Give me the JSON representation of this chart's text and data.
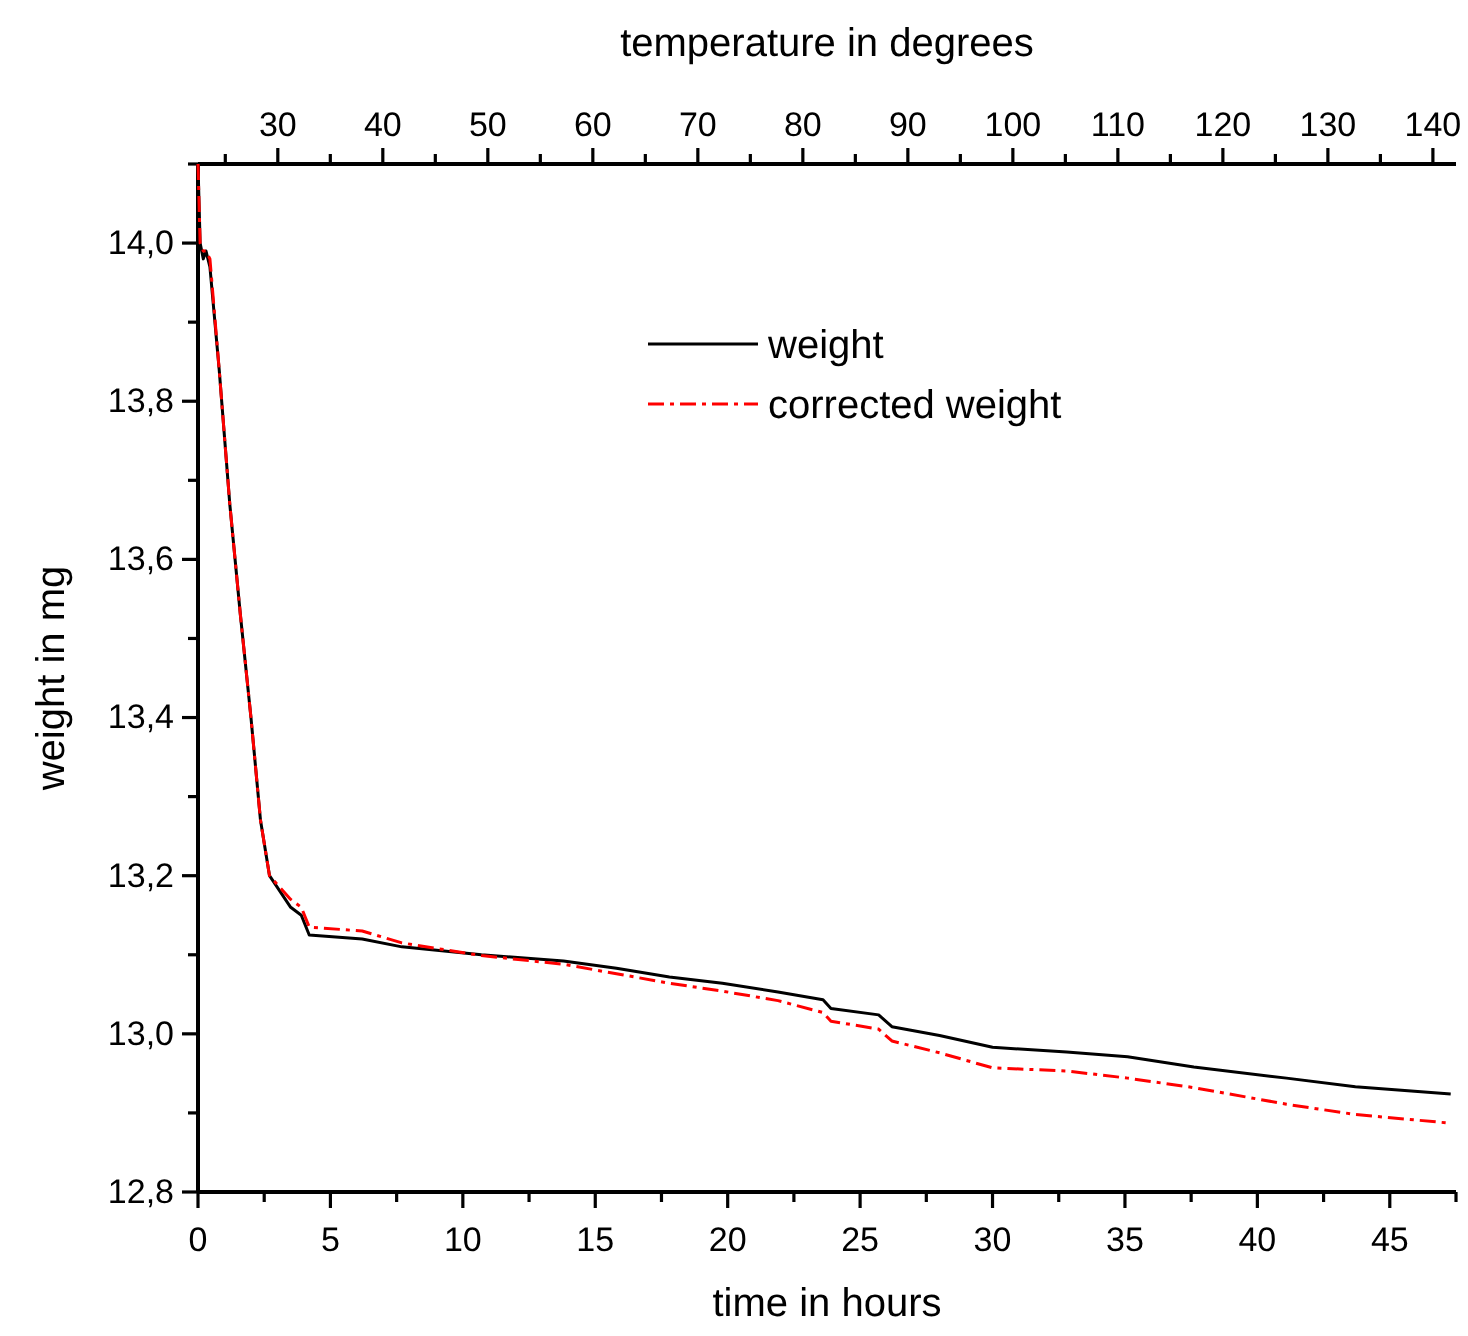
{
  "chart_data": {
    "type": "line",
    "xlabel": "time in hours",
    "ylabel": "weight in mg",
    "x2label": "temperature in degrees",
    "xlim": [
      0,
      47.5
    ],
    "ylim": [
      12.8,
      14.1
    ],
    "x2lim": [
      22.4,
      142.2
    ],
    "xticks": [
      0,
      {
        "value": 2.5,
        "label": null
      },
      5,
      {
        "value": 7.5,
        "label": null
      },
      10,
      {
        "value": 12.5,
        "label": null
      },
      15,
      {
        "value": 17.5,
        "label": null
      },
      20,
      {
        "value": 22.5,
        "label": null
      },
      25,
      {
        "value": 27.5,
        "label": null
      },
      30,
      {
        "value": 32.5,
        "label": null
      },
      35,
      {
        "value": 37.5,
        "label": null
      },
      40,
      {
        "value": 42.5,
        "label": null
      },
      45,
      {
        "value": 47.5,
        "label": null
      }
    ],
    "x2ticks": [
      {
        "value": 25,
        "label": null
      },
      30,
      {
        "value": 35,
        "label": null
      },
      40,
      {
        "value": 45,
        "label": null
      },
      50,
      {
        "value": 55,
        "label": null
      },
      60,
      {
        "value": 65,
        "label": null
      },
      70,
      {
        "value": 75,
        "label": null
      },
      80,
      {
        "value": 85,
        "label": null
      },
      90,
      {
        "value": 95,
        "label": null
      },
      100,
      {
        "value": 105,
        "label": null
      },
      110,
      {
        "value": 115,
        "label": null
      },
      120,
      {
        "value": 125,
        "label": null
      },
      130,
      {
        "value": 135,
        "label": null
      },
      140
    ],
    "yticks": [
      {
        "value": 12.8,
        "label": "12,8"
      },
      {
        "value": 12.9,
        "label": null
      },
      {
        "value": 13.0,
        "label": "13,0"
      },
      {
        "value": 13.1,
        "label": null
      },
      {
        "value": 13.2,
        "label": "13,2"
      },
      {
        "value": 13.3,
        "label": null
      },
      {
        "value": 13.4,
        "label": "13,4"
      },
      {
        "value": 13.5,
        "label": null
      },
      {
        "value": 13.6,
        "label": "13,6"
      },
      {
        "value": 13.7,
        "label": null
      },
      {
        "value": 13.8,
        "label": "13,8"
      },
      {
        "value": 13.9,
        "label": null
      },
      {
        "value": 14.0,
        "label": "14,0"
      },
      {
        "value": 14.1,
        "label": null
      }
    ],
    "legend": "top right",
    "grid": false,
    "marker": "none",
    "series": [
      {
        "name": "weight",
        "color": "#000000",
        "line_style": "solid",
        "x": [
          0,
          0.08,
          0.2,
          0.3,
          0.45,
          0.8,
          1.2,
          1.6,
          2.0,
          2.36,
          2.7,
          3.5,
          3.9,
          4.2,
          6.2,
          7.7,
          10.7,
          13.8,
          15.8,
          17.8,
          19.8,
          21.9,
          23.6,
          23.9,
          25.7,
          26.2,
          28.0,
          30.0,
          32.8,
          35.1,
          37.6,
          41.1,
          43.7,
          47.3
        ],
        "values": [
          14.1,
          14.0,
          13.98,
          13.99,
          13.97,
          13.84,
          13.67,
          13.53,
          13.4,
          13.27,
          13.2,
          13.16,
          13.15,
          13.125,
          13.12,
          13.11,
          13.1,
          13.092,
          13.083,
          13.072,
          13.064,
          13.053,
          13.043,
          13.032,
          13.024,
          13.009,
          12.998,
          12.983,
          12.977,
          12.971,
          12.958,
          12.944,
          12.933,
          12.924
        ]
      },
      {
        "name": "corrected weight",
        "color": "#ff0000",
        "line_style": "dashed",
        "x": [
          0,
          0.08,
          0.2,
          0.3,
          0.45,
          0.8,
          1.2,
          1.6,
          2.0,
          2.36,
          2.7,
          3.5,
          3.9,
          4.2,
          6.2,
          7.7,
          10.7,
          13.8,
          15.8,
          17.8,
          19.8,
          21.9,
          23.6,
          23.9,
          25.7,
          26.2,
          28.0,
          30.0,
          32.8,
          35.1,
          37.6,
          41.1,
          43.7,
          47.3
        ],
        "values": [
          14.1,
          14.0,
          13.99,
          13.99,
          13.98,
          13.84,
          13.67,
          13.53,
          13.4,
          13.27,
          13.2,
          13.17,
          13.16,
          13.135,
          13.13,
          13.115,
          13.099,
          13.088,
          13.076,
          13.064,
          13.054,
          13.042,
          13.027,
          13.016,
          13.006,
          12.991,
          12.976,
          12.957,
          12.953,
          12.944,
          12.932,
          12.911,
          12.898,
          12.887
        ]
      }
    ]
  }
}
